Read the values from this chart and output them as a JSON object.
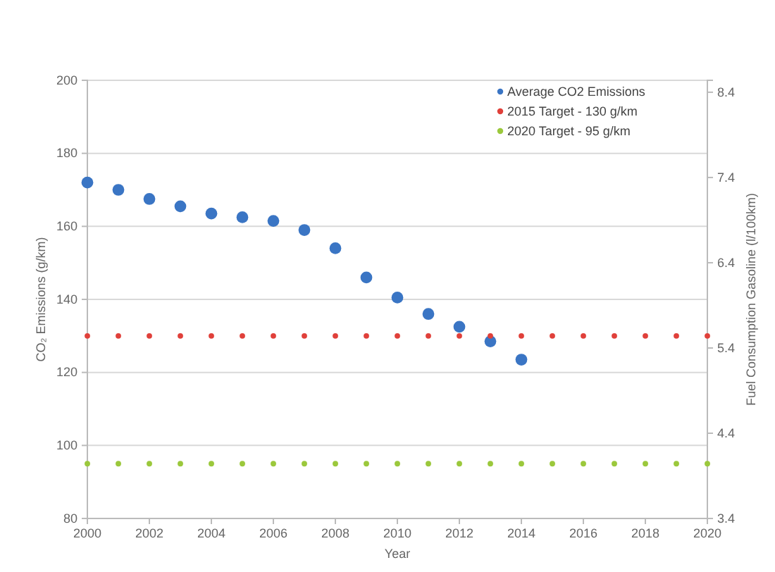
{
  "chart_data": {
    "type": "scatter",
    "xlabel": "Year",
    "ylabel": "CO₂ Emissions (g/km)",
    "y2label": "Fuel Consumption Gasoline (l/100km)",
    "xlim": [
      2000,
      2020
    ],
    "xticks": [
      2000,
      2002,
      2004,
      2006,
      2008,
      2010,
      2012,
      2014,
      2016,
      2018,
      2020
    ],
    "ylim": [
      80,
      200
    ],
    "yticks": [
      80,
      100,
      120,
      140,
      160,
      180,
      200
    ],
    "y2lim": [
      3.4,
      8.54
    ],
    "y2ticks": [
      3.4,
      4.4,
      5.4,
      6.4,
      7.4,
      8.4
    ],
    "grid": "y",
    "legend": "top right",
    "marker": "circle",
    "series": [
      {
        "name": "Average CO2 Emissions",
        "color": "#3a75c4",
        "x": [
          2000,
          2001,
          2002,
          2003,
          2004,
          2005,
          2006,
          2007,
          2008,
          2009,
          2010,
          2011,
          2012,
          2013,
          2014
        ],
        "values": [
          172,
          170,
          167.5,
          165.5,
          163.5,
          162.5,
          161.5,
          159,
          154,
          146,
          140.5,
          136,
          132.5,
          128.5,
          123.5
        ]
      },
      {
        "name": "2015 Target - 130 g/km",
        "color": "#e0403a",
        "x": [
          2000,
          2001,
          2002,
          2003,
          2004,
          2005,
          2006,
          2007,
          2008,
          2009,
          2010,
          2011,
          2012,
          2013,
          2014,
          2015,
          2016,
          2017,
          2018,
          2019,
          2020
        ],
        "values": [
          130,
          130,
          130,
          130,
          130,
          130,
          130,
          130,
          130,
          130,
          130,
          130,
          130,
          130,
          130,
          130,
          130,
          130,
          130,
          130,
          130
        ]
      },
      {
        "name": "2020 Target - 95 g/km",
        "color": "#9bc83c",
        "x": [
          2000,
          2001,
          2002,
          2003,
          2004,
          2005,
          2006,
          2007,
          2008,
          2009,
          2010,
          2011,
          2012,
          2013,
          2014,
          2015,
          2016,
          2017,
          2018,
          2019,
          2020
        ],
        "values": [
          95,
          95,
          95,
          95,
          95,
          95,
          95,
          95,
          95,
          95,
          95,
          95,
          95,
          95,
          95,
          95,
          95,
          95,
          95,
          95,
          95
        ]
      }
    ]
  }
}
